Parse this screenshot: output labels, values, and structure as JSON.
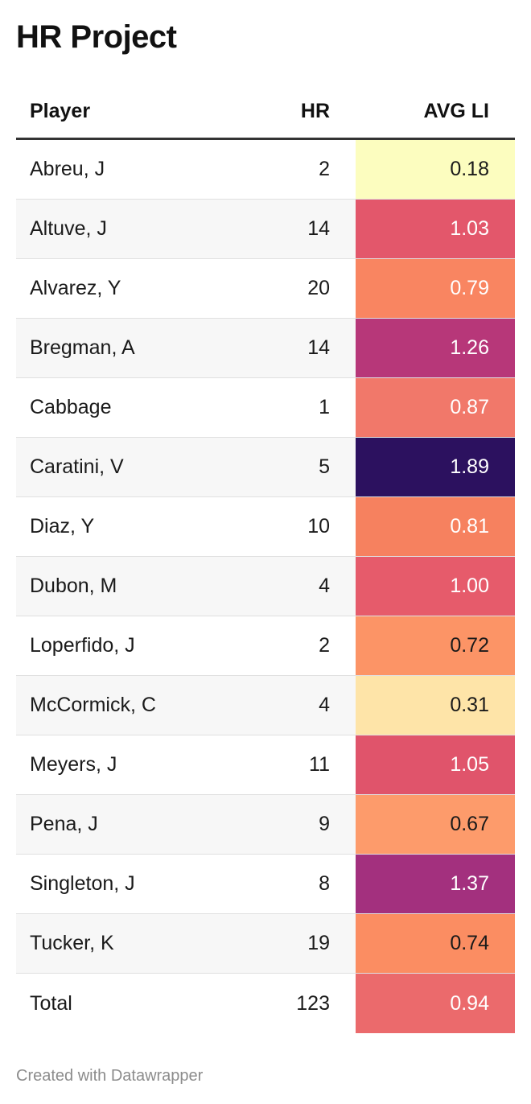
{
  "title": "HR Project",
  "footer": "Created with Datawrapper",
  "chart_data": {
    "type": "table",
    "title": "HR Project",
    "columns": [
      "Player",
      "HR",
      "AVG LI"
    ],
    "color_scale": {
      "column": "AVG LI",
      "stops": [
        {
          "value": 0.18,
          "color": "#fcfdbf"
        },
        {
          "value": 0.31,
          "color": "#fee4a8"
        },
        {
          "value": 0.67,
          "color": "#fd9b6b"
        },
        {
          "value": 0.72,
          "color": "#fc9466"
        },
        {
          "value": 0.74,
          "color": "#fb8d62"
        },
        {
          "value": 0.79,
          "color": "#f98561"
        },
        {
          "value": 0.81,
          "color": "#f6815f"
        },
        {
          "value": 0.87,
          "color": "#f1786a"
        },
        {
          "value": 0.94,
          "color": "#eb6a6c"
        },
        {
          "value": 1.0,
          "color": "#e65b6b"
        },
        {
          "value": 1.03,
          "color": "#e3576b"
        },
        {
          "value": 1.05,
          "color": "#e0546b"
        },
        {
          "value": 1.26,
          "color": "#b73779"
        },
        {
          "value": 1.37,
          "color": "#a3307e"
        },
        {
          "value": 1.89,
          "color": "#2c115f"
        }
      ]
    },
    "rows": [
      {
        "player": "Abreu, J",
        "hr": "2",
        "avg_li": "0.18",
        "bg": "#fcfdbf",
        "fg": "#1a1a1a"
      },
      {
        "player": "Altuve, J",
        "hr": "14",
        "avg_li": "1.03",
        "bg": "#e3576b",
        "fg": "#ffffff"
      },
      {
        "player": "Alvarez, Y",
        "hr": "20",
        "avg_li": "0.79",
        "bg": "#f98561",
        "fg": "#ffffff"
      },
      {
        "player": "Bregman, A",
        "hr": "14",
        "avg_li": "1.26",
        "bg": "#b73779",
        "fg": "#ffffff"
      },
      {
        "player": "Cabbage",
        "hr": "1",
        "avg_li": "0.87",
        "bg": "#f1786a",
        "fg": "#ffffff"
      },
      {
        "player": "Caratini, V",
        "hr": "5",
        "avg_li": "1.89",
        "bg": "#2c115f",
        "fg": "#ffffff"
      },
      {
        "player": "Diaz, Y",
        "hr": "10",
        "avg_li": "0.81",
        "bg": "#f6815f",
        "fg": "#ffffff"
      },
      {
        "player": "Dubon, M",
        "hr": "4",
        "avg_li": "1.00",
        "bg": "#e65b6b",
        "fg": "#ffffff"
      },
      {
        "player": "Loperfido, J",
        "hr": "2",
        "avg_li": "0.72",
        "bg": "#fc9466",
        "fg": "#1a1a1a"
      },
      {
        "player": "McCormick, C",
        "hr": "4",
        "avg_li": "0.31",
        "bg": "#fee4a8",
        "fg": "#1a1a1a"
      },
      {
        "player": "Meyers, J",
        "hr": "11",
        "avg_li": "1.05",
        "bg": "#e0546b",
        "fg": "#ffffff"
      },
      {
        "player": "Pena, J",
        "hr": "9",
        "avg_li": "0.67",
        "bg": "#fd9b6b",
        "fg": "#1a1a1a"
      },
      {
        "player": "Singleton, J",
        "hr": "8",
        "avg_li": "1.37",
        "bg": "#a3307e",
        "fg": "#ffffff"
      },
      {
        "player": "Tucker, K",
        "hr": "19",
        "avg_li": "0.74",
        "bg": "#fb8d62",
        "fg": "#1a1a1a"
      },
      {
        "player": "Total",
        "hr": "123",
        "avg_li": "0.94",
        "bg": "#eb6a6c",
        "fg": "#ffffff"
      }
    ]
  }
}
